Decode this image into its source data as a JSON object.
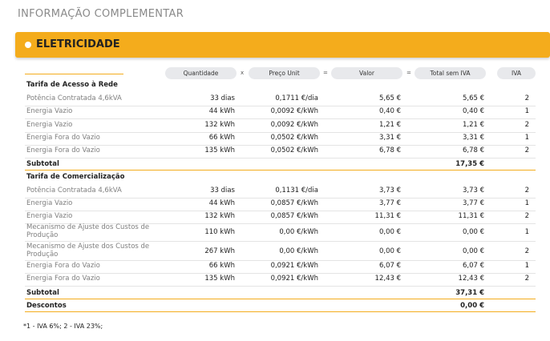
{
  "page": {
    "title": "INFORMAÇÃO COMPLEMENTAR"
  },
  "section": {
    "title": "ELETRICIDADE"
  },
  "header": {
    "quantidade": "Quantidade",
    "op1": "x",
    "preco": "Preço Unit",
    "op2": "=",
    "valor": "Valor",
    "op3": "=",
    "total": "Total sem IVA",
    "iva": "IVA"
  },
  "groups": [
    {
      "title": "Tarifa de Acesso à Rede",
      "rows": [
        {
          "label": "Potência Contratada 4,6kVA",
          "qty": "33 dias",
          "price": "0,1711 €/dia",
          "value": "5,65 €",
          "total": "5,65 €",
          "iva": "2"
        },
        {
          "label": "Energia Vazio",
          "qty": "44 kWh",
          "price": "0,0092 €/kWh",
          "value": "0,40 €",
          "total": "0,40 €",
          "iva": "1"
        },
        {
          "label": "Energia Vazio",
          "qty": "132 kWh",
          "price": "0,0092 €/kWh",
          "value": "1,21 €",
          "total": "1,21 €",
          "iva": "2"
        },
        {
          "label": "Energia Fora do Vazio",
          "qty": "66 kWh",
          "price": "0,0502 €/kWh",
          "value": "3,31 €",
          "total": "3,31 €",
          "iva": "1"
        },
        {
          "label": "Energia Fora do Vazio",
          "qty": "135 kWh",
          "price": "0,0502 €/kWh",
          "value": "6,78 €",
          "total": "6,78 €",
          "iva": "2"
        }
      ],
      "subtotal": {
        "label": "Subtotal",
        "total": "17,35 €"
      }
    },
    {
      "title": "Tarifa de Comercialização",
      "rows": [
        {
          "label": "Potência Contratada 4,6kVA",
          "qty": "33 dias",
          "price": "0,1131 €/dia",
          "value": "3,73 €",
          "total": "3,73 €",
          "iva": "2"
        },
        {
          "label": "Energia Vazio",
          "qty": "44 kWh",
          "price": "0,0857 €/kWh",
          "value": "3,77 €",
          "total": "3,77 €",
          "iva": "1"
        },
        {
          "label": "Energia Vazio",
          "qty": "132 kWh",
          "price": "0,0857 €/kWh",
          "value": "11,31 €",
          "total": "11,31 €",
          "iva": "2"
        },
        {
          "label": "Mecanismo de Ajuste dos Custos de Produção",
          "qty": "110 kWh",
          "price": "0,00 €/kWh",
          "value": "0,00 €",
          "total": "0,00 €",
          "iva": "1"
        },
        {
          "label": "Mecanismo de Ajuste dos Custos de Produção",
          "qty": "267 kWh",
          "price": "0,00 €/kWh",
          "value": "0,00 €",
          "total": "0,00 €",
          "iva": "2"
        },
        {
          "label": "Energia Fora do Vazio",
          "qty": "66 kWh",
          "price": "0,0921 €/kWh",
          "value": "6,07 €",
          "total": "6,07 €",
          "iva": "1"
        },
        {
          "label": "Energia Fora do Vazio",
          "qty": "135 kWh",
          "price": "0,0921 €/kWh",
          "value": "12,43 €",
          "total": "12,43 €",
          "iva": "2"
        }
      ],
      "subtotal": {
        "label": "Subtotal",
        "total": "37,31 €"
      }
    }
  ],
  "descontos": {
    "label": "Descontos",
    "total": "0,00 €"
  },
  "footnote": "*1 - IVA 6%;  2 - IVA 23%;"
}
